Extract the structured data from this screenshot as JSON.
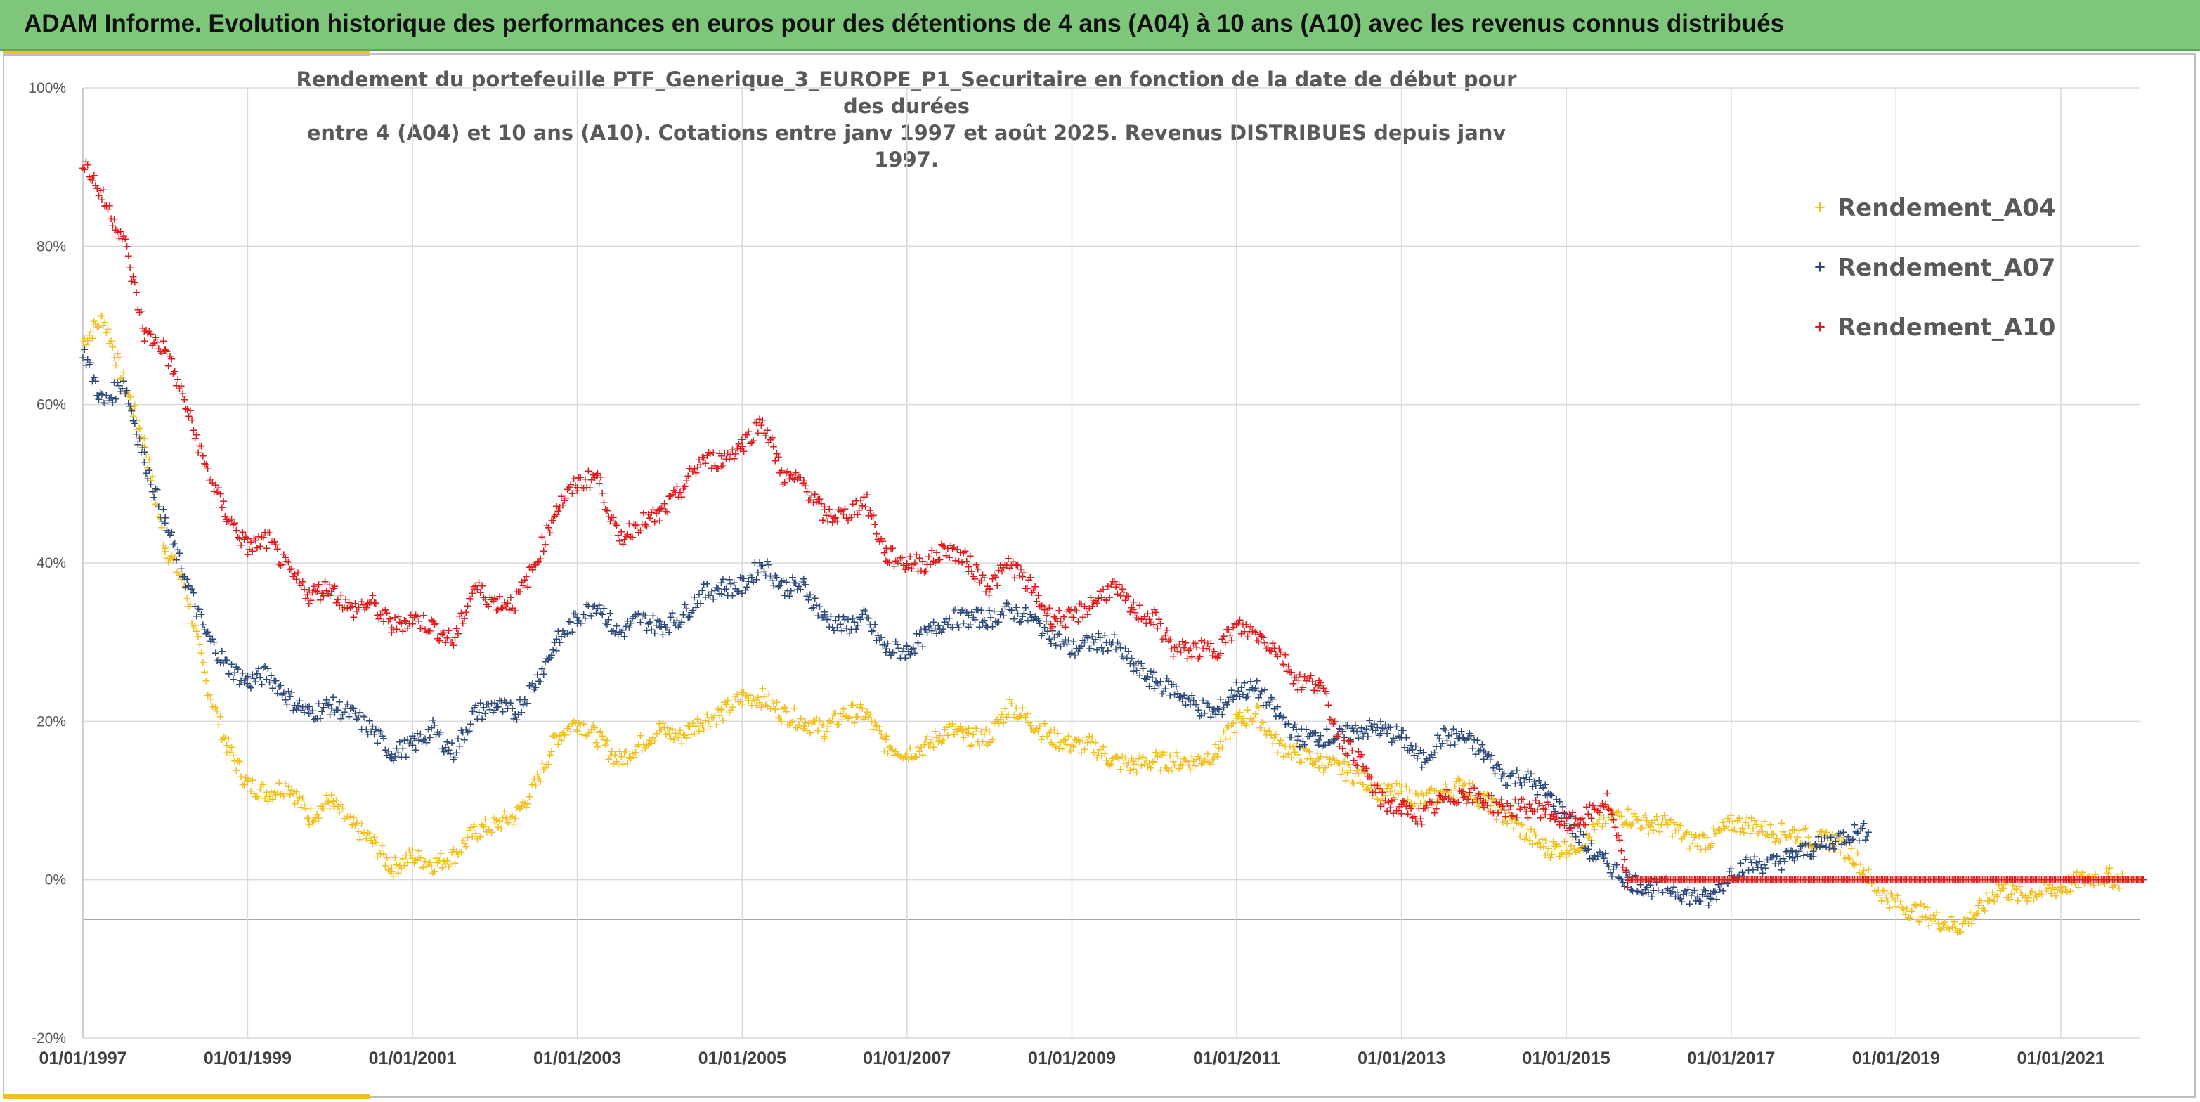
{
  "banner": {
    "title": "ADAM Informe. Evolution historique des performances en euros pour des détentions de 4 ans (A04) à 10 ans (A10) avec les revenus connus distribués"
  },
  "chart_data": {
    "type": "scatter",
    "title_lines": [
      "Rendement du portefeuille PTF_Generique_3_EUROPE_P1_Securitaire en fonction de la date de début pour des durées",
      "entre 4 (A04) et 10 ans (A10). Cotations entre janv 1997 et août 2025. Revenus DISTRIBUES depuis janv 1997."
    ],
    "xlabel": "",
    "ylabel": "",
    "x_ticks": [
      "01/01/1997",
      "01/01/1999",
      "01/01/2001",
      "01/01/2003",
      "01/01/2005",
      "01/01/2007",
      "01/01/2009",
      "01/01/2011",
      "01/01/2013",
      "01/01/2015",
      "01/01/2017",
      "01/01/2019",
      "01/01/2021"
    ],
    "y_ticks": [
      "100%",
      "80%",
      "60%",
      "40%",
      "20%",
      "0%",
      "-20%"
    ],
    "ylim": [
      -20,
      100
    ],
    "xlim": [
      "1997-01-01",
      "2022-01-01"
    ],
    "reference_line": -5,
    "grid": true,
    "legend_position": "top-right",
    "marker": "+",
    "series": [
      {
        "name": "Rendement_A04",
        "color": "#f2c01c",
        "points": [
          [
            "1997-01-01",
            68
          ],
          [
            "1997-04-01",
            71
          ],
          [
            "1997-07-01",
            63
          ],
          [
            "1997-10-01",
            55
          ],
          [
            "1998-01-01",
            42
          ],
          [
            "1998-04-01",
            37
          ],
          [
            "1998-07-01",
            25
          ],
          [
            "1998-10-01",
            17
          ],
          [
            "1999-01-01",
            12
          ],
          [
            "1999-04-01",
            11
          ],
          [
            "1999-07-01",
            12
          ],
          [
            "1999-10-01",
            8
          ],
          [
            "2000-01-01",
            10
          ],
          [
            "2000-04-01",
            7
          ],
          [
            "2000-07-01",
            5
          ],
          [
            "2000-10-01",
            1.5
          ],
          [
            "2001-01-01",
            3
          ],
          [
            "2001-04-01",
            2
          ],
          [
            "2001-07-01",
            3
          ],
          [
            "2001-10-01",
            6
          ],
          [
            "2002-01-01",
            7
          ],
          [
            "2002-04-01",
            8
          ],
          [
            "2002-07-01",
            12
          ],
          [
            "2002-10-01",
            18
          ],
          [
            "2003-01-01",
            20
          ],
          [
            "2003-04-01",
            18
          ],
          [
            "2003-07-01",
            15
          ],
          [
            "2003-10-01",
            17
          ],
          [
            "2004-01-01",
            19
          ],
          [
            "2004-04-01",
            18
          ],
          [
            "2004-07-01",
            20
          ],
          [
            "2004-10-01",
            21
          ],
          [
            "2005-01-01",
            23
          ],
          [
            "2005-04-01",
            23
          ],
          [
            "2005-07-01",
            21
          ],
          [
            "2005-10-01",
            20
          ],
          [
            "2006-01-01",
            19
          ],
          [
            "2006-04-01",
            21
          ],
          [
            "2006-07-01",
            21
          ],
          [
            "2006-10-01",
            17
          ],
          [
            "2007-01-01",
            16
          ],
          [
            "2007-04-01",
            17
          ],
          [
            "2007-07-01",
            19
          ],
          [
            "2007-10-01",
            18
          ],
          [
            "2008-01-01",
            18
          ],
          [
            "2008-04-01",
            22
          ],
          [
            "2008-07-01",
            20
          ],
          [
            "2008-10-01",
            18
          ],
          [
            "2009-01-01",
            17
          ],
          [
            "2009-04-01",
            17
          ],
          [
            "2009-07-01",
            15
          ],
          [
            "2009-10-01",
            14.5
          ],
          [
            "2010-01-01",
            15
          ],
          [
            "2010-04-01",
            15
          ],
          [
            "2010-07-01",
            15
          ],
          [
            "2010-10-01",
            16
          ],
          [
            "2011-01-01",
            20
          ],
          [
            "2011-04-01",
            21
          ],
          [
            "2011-07-01",
            17
          ],
          [
            "2011-10-01",
            16
          ],
          [
            "2012-01-01",
            15
          ],
          [
            "2012-04-01",
            14
          ],
          [
            "2012-07-01",
            13
          ],
          [
            "2012-10-01",
            11
          ],
          [
            "2013-01-01",
            11
          ],
          [
            "2013-04-01",
            10
          ],
          [
            "2013-07-01",
            11
          ],
          [
            "2013-10-01",
            12
          ],
          [
            "2014-01-01",
            10
          ],
          [
            "2014-04-01",
            8
          ],
          [
            "2014-07-01",
            6
          ],
          [
            "2014-10-01",
            4
          ],
          [
            "2015-01-01",
            4
          ],
          [
            "2015-04-01",
            5
          ],
          [
            "2015-07-01",
            8
          ],
          [
            "2015-10-01",
            8
          ],
          [
            "2016-01-01",
            7
          ],
          [
            "2016-04-01",
            7
          ],
          [
            "2016-07-01",
            5
          ],
          [
            "2016-10-01",
            5
          ],
          [
            "2017-01-01",
            7
          ],
          [
            "2017-04-01",
            7
          ],
          [
            "2017-07-01",
            6
          ],
          [
            "2017-10-01",
            6
          ],
          [
            "2018-01-01",
            5
          ],
          [
            "2018-04-01",
            5
          ],
          [
            "2018-07-01",
            3
          ],
          [
            "2018-10-01",
            -1
          ],
          [
            "2019-01-01",
            -3
          ],
          [
            "2019-04-01",
            -4
          ],
          [
            "2019-07-01",
            -5
          ],
          [
            "2019-10-01",
            -6
          ],
          [
            "2020-01-01",
            -4
          ],
          [
            "2020-04-01",
            -1
          ],
          [
            "2020-07-01",
            -2
          ],
          [
            "2020-10-01",
            -1.5
          ],
          [
            "2021-01-01",
            -1
          ],
          [
            "2021-04-01",
            0
          ],
          [
            "2021-07-01",
            0.5
          ],
          [
            "2021-10-01",
            0
          ],
          [
            "2022-01-01",
            0
          ]
        ]
      },
      {
        "name": "Rendement_A07",
        "color": "#2e4a7a",
        "points": [
          [
            "1997-01-01",
            67
          ],
          [
            "1997-04-01",
            60
          ],
          [
            "1997-07-01",
            63
          ],
          [
            "1997-10-01",
            53
          ],
          [
            "1998-01-01",
            45
          ],
          [
            "1998-04-01",
            38
          ],
          [
            "1998-07-01",
            31
          ],
          [
            "1998-10-01",
            27
          ],
          [
            "1999-01-01",
            25
          ],
          [
            "1999-04-01",
            26
          ],
          [
            "1999-07-01",
            23
          ],
          [
            "1999-10-01",
            21
          ],
          [
            "2000-01-01",
            22
          ],
          [
            "2000-04-01",
            21
          ],
          [
            "2000-07-01",
            19
          ],
          [
            "2000-10-01",
            16
          ],
          [
            "2001-01-01",
            17
          ],
          [
            "2001-04-01",
            19
          ],
          [
            "2001-07-01",
            16
          ],
          [
            "2001-10-01",
            21
          ],
          [
            "2002-01-01",
            22
          ],
          [
            "2002-04-01",
            21
          ],
          [
            "2002-07-01",
            25
          ],
          [
            "2002-10-01",
            30
          ],
          [
            "2003-01-01",
            33
          ],
          [
            "2003-04-01",
            35
          ],
          [
            "2003-07-01",
            31
          ],
          [
            "2003-10-01",
            33
          ],
          [
            "2004-01-01",
            32
          ],
          [
            "2004-04-01",
            33
          ],
          [
            "2004-07-01",
            36
          ],
          [
            "2004-10-01",
            37
          ],
          [
            "2005-01-01",
            37
          ],
          [
            "2005-04-01",
            40
          ],
          [
            "2005-07-01",
            37
          ],
          [
            "2005-10-01",
            37
          ],
          [
            "2006-01-01",
            33
          ],
          [
            "2006-04-01",
            32
          ],
          [
            "2006-07-01",
            33
          ],
          [
            "2006-10-01",
            29
          ],
          [
            "2007-01-01",
            29
          ],
          [
            "2007-04-01",
            31
          ],
          [
            "2007-07-01",
            33
          ],
          [
            "2007-10-01",
            33
          ],
          [
            "2008-01-01",
            33
          ],
          [
            "2008-04-01",
            34
          ],
          [
            "2008-07-01",
            33
          ],
          [
            "2008-10-01",
            31
          ],
          [
            "2009-01-01",
            29
          ],
          [
            "2009-04-01",
            30
          ],
          [
            "2009-07-01",
            30
          ],
          [
            "2009-10-01",
            27
          ],
          [
            "2010-01-01",
            25
          ],
          [
            "2010-04-01",
            24
          ],
          [
            "2010-07-01",
            22
          ],
          [
            "2010-10-01",
            21
          ],
          [
            "2011-01-01",
            24
          ],
          [
            "2011-04-01",
            24
          ],
          [
            "2011-07-01",
            21
          ],
          [
            "2011-10-01",
            18
          ],
          [
            "2012-01-01",
            18
          ],
          [
            "2012-04-01",
            18
          ],
          [
            "2012-07-01",
            19
          ],
          [
            "2012-10-01",
            19
          ],
          [
            "2013-01-01",
            18
          ],
          [
            "2013-04-01",
            15
          ],
          [
            "2013-07-01",
            18
          ],
          [
            "2013-10-01",
            18
          ],
          [
            "2014-01-01",
            16
          ],
          [
            "2014-04-01",
            13
          ],
          [
            "2014-07-01",
            13
          ],
          [
            "2014-10-01",
            11
          ],
          [
            "2015-01-01",
            8
          ],
          [
            "2015-04-01",
            4
          ],
          [
            "2015-07-01",
            2
          ],
          [
            "2015-10-01",
            0
          ],
          [
            "2016-01-01",
            -1
          ],
          [
            "2016-04-01",
            -1
          ],
          [
            "2016-07-01",
            -2
          ],
          [
            "2016-10-01",
            -2.5
          ],
          [
            "2017-01-01",
            1
          ],
          [
            "2017-04-01",
            2
          ],
          [
            "2017-07-01",
            2
          ],
          [
            "2017-10-01",
            3
          ],
          [
            "2018-01-01",
            4
          ],
          [
            "2018-04-01",
            5
          ],
          [
            "2018-07-01",
            6
          ],
          [
            "2018-09-01",
            6
          ]
        ]
      },
      {
        "name": "Rendement_A10",
        "color": "#e31a1c",
        "points": [
          [
            "1997-01-01",
            91
          ],
          [
            "1997-04-01",
            86
          ],
          [
            "1997-07-01",
            81
          ],
          [
            "1997-10-01",
            69
          ],
          [
            "1998-01-01",
            67
          ],
          [
            "1998-04-01",
            60
          ],
          [
            "1998-07-01",
            52
          ],
          [
            "1998-10-01",
            46
          ],
          [
            "1999-01-01",
            42
          ],
          [
            "1999-04-01",
            43
          ],
          [
            "1999-07-01",
            39
          ],
          [
            "1999-10-01",
            36
          ],
          [
            "2000-01-01",
            37
          ],
          [
            "2000-04-01",
            34
          ],
          [
            "2000-07-01",
            35
          ],
          [
            "2000-10-01",
            32
          ],
          [
            "2001-01-01",
            33
          ],
          [
            "2001-04-01",
            32
          ],
          [
            "2001-07-01",
            30
          ],
          [
            "2001-10-01",
            37
          ],
          [
            "2002-01-01",
            35
          ],
          [
            "2002-04-01",
            35
          ],
          [
            "2002-07-01",
            40
          ],
          [
            "2002-10-01",
            47
          ],
          [
            "2003-01-01",
            50
          ],
          [
            "2003-04-01",
            51
          ],
          [
            "2003-07-01",
            43
          ],
          [
            "2003-10-01",
            45
          ],
          [
            "2004-01-01",
            46
          ],
          [
            "2004-04-01",
            49
          ],
          [
            "2004-07-01",
            53
          ],
          [
            "2004-10-01",
            53
          ],
          [
            "2005-01-01",
            55
          ],
          [
            "2005-04-01",
            58
          ],
          [
            "2005-07-01",
            51
          ],
          [
            "2005-10-01",
            50
          ],
          [
            "2006-01-01",
            46
          ],
          [
            "2006-04-01",
            46
          ],
          [
            "2006-07-01",
            48
          ],
          [
            "2006-10-01",
            41
          ],
          [
            "2007-01-01",
            40
          ],
          [
            "2007-04-01",
            40
          ],
          [
            "2007-07-01",
            42
          ],
          [
            "2007-10-01",
            40
          ],
          [
            "2008-01-01",
            37
          ],
          [
            "2008-04-01",
            40
          ],
          [
            "2008-07-01",
            37
          ],
          [
            "2008-10-01",
            33
          ],
          [
            "2009-01-01",
            33
          ],
          [
            "2009-04-01",
            35
          ],
          [
            "2009-07-01",
            37
          ],
          [
            "2009-10-01",
            34
          ],
          [
            "2010-01-01",
            33
          ],
          [
            "2010-04-01",
            29
          ],
          [
            "2010-07-01",
            29
          ],
          [
            "2010-10-01",
            29
          ],
          [
            "2011-01-01",
            32
          ],
          [
            "2011-04-01",
            31
          ],
          [
            "2011-07-01",
            29
          ],
          [
            "2011-10-01",
            25
          ],
          [
            "2012-01-01",
            25
          ],
          [
            "2012-04-01",
            18
          ],
          [
            "2012-07-01",
            15
          ],
          [
            "2012-10-01",
            10
          ],
          [
            "2013-01-01",
            9
          ],
          [
            "2013-04-01",
            8
          ],
          [
            "2013-07-01",
            10
          ],
          [
            "2013-10-01",
            11
          ],
          [
            "2014-01-01",
            10
          ],
          [
            "2014-04-01",
            9
          ],
          [
            "2014-07-01",
            9
          ],
          [
            "2014-10-01",
            9
          ],
          [
            "2015-01-01",
            7
          ],
          [
            "2015-04-01",
            8
          ],
          [
            "2015-07-01",
            10
          ],
          [
            "2015-10-01",
            0
          ],
          [
            "2016-07-01",
            0
          ],
          [
            "2017-07-01",
            0
          ],
          [
            "2018-07-01",
            0
          ],
          [
            "2019-07-01",
            0
          ],
          [
            "2020-07-01",
            0
          ],
          [
            "2021-07-01",
            0
          ],
          [
            "2022-01-01",
            0
          ]
        ]
      }
    ]
  }
}
